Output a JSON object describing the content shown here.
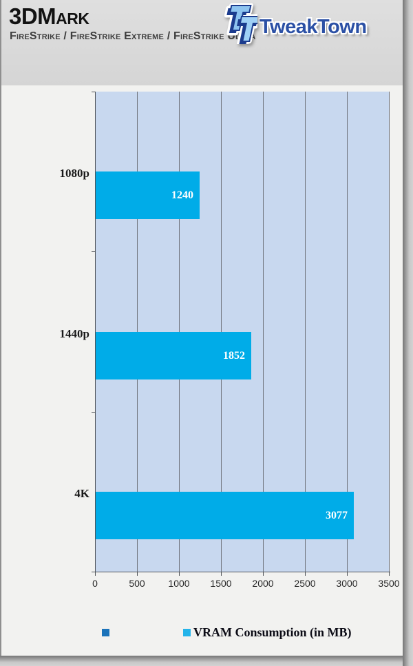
{
  "header": {
    "title": "3DMark",
    "subtitle": "FireStrike / FireStrike Extreme / FireStrike Ultra"
  },
  "logo": {
    "text": "TweakTown",
    "icon": "tweaktown-tt-icon",
    "text_color": "#2b50a5"
  },
  "chart_data": {
    "type": "bar",
    "orientation": "horizontal",
    "categories": [
      "1080p",
      "1440p",
      "4K"
    ],
    "values": [
      1240,
      1852,
      3077
    ],
    "series_name": "VRAM Consumption (in MB)",
    "title": "",
    "xlabel": "",
    "ylabel": "",
    "xlim": [
      0,
      3500
    ],
    "x_ticks": [
      0,
      500,
      1000,
      1500,
      2000,
      2500,
      3000,
      3500
    ],
    "grid": true,
    "legend_position": "bottom",
    "bar_color": "#00ace8",
    "plot_bg": "#c8d8ef",
    "value_label_color": "#ffffff"
  },
  "legend": {
    "items": [
      {
        "label": "",
        "color": "#1b73ba"
      },
      {
        "label": "VRAM Consumption (in MB)",
        "color": "#24b4ea"
      }
    ]
  }
}
